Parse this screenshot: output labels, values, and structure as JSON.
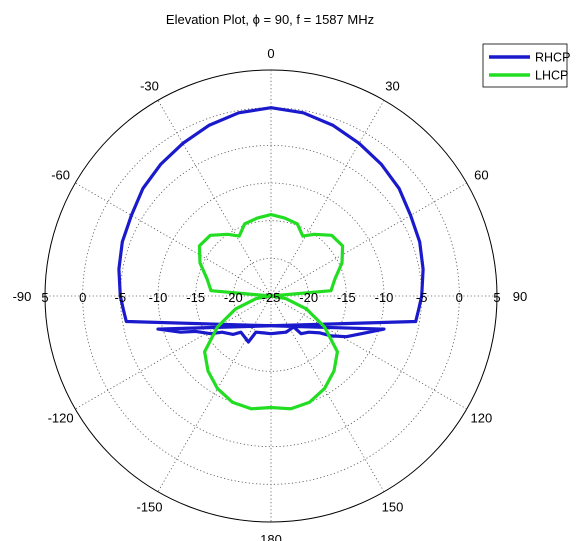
{
  "chart_data": {
    "type": "line",
    "polar": true,
    "title": "Elevation Plot, ϕ = 90, f = 1587 MHz",
    "title_parts": {
      "prefix": "Elevation Plot, ",
      "symbol": "ϕ",
      "suffix": " = 90, f = 1587 MHz"
    },
    "theta_direction": "clockwise",
    "theta_zero": "top",
    "angle_tick_labels": [
      {
        "theta": 0,
        "label": "0"
      },
      {
        "theta": 30,
        "label": "30"
      },
      {
        "theta": 60,
        "label": "60"
      },
      {
        "theta": 90,
        "label": "90"
      },
      {
        "theta": 120,
        "label": "120"
      },
      {
        "theta": 150,
        "label": "150"
      },
      {
        "theta": 180,
        "label": "180"
      },
      {
        "theta": -150,
        "label": "-150"
      },
      {
        "theta": -120,
        "label": "-120"
      },
      {
        "theta": -90,
        "label": "-90"
      },
      {
        "theta": -60,
        "label": "-60"
      },
      {
        "theta": -30,
        "label": "-30"
      }
    ],
    "radial_range": [
      -25,
      5
    ],
    "radial_ticks": [
      -25,
      -20,
      -15,
      -10,
      -5,
      0,
      5
    ],
    "radial_tick_labels": [
      {
        "value": 5,
        "side": "left",
        "label": "5"
      },
      {
        "value": 0,
        "side": "left",
        "label": "0"
      },
      {
        "value": -5,
        "side": "left",
        "label": "-5"
      },
      {
        "value": -10,
        "side": "left",
        "label": "-10"
      },
      {
        "value": -15,
        "side": "left",
        "label": "-15"
      },
      {
        "value": -20,
        "side": "left",
        "label": "-20"
      },
      {
        "value": -25,
        "side": "center",
        "label": "-25"
      },
      {
        "value": -20,
        "side": "right",
        "label": "-20"
      },
      {
        "value": -15,
        "side": "right",
        "label": "-15"
      },
      {
        "value": -10,
        "side": "right",
        "label": "-10"
      },
      {
        "value": -5,
        "side": "right",
        "label": "-5"
      },
      {
        "value": 0,
        "side": "right",
        "label": "0"
      },
      {
        "value": 5,
        "side": "right",
        "label": "5"
      }
    ],
    "grid": true,
    "legend": {
      "placement": "top-right"
    },
    "series": [
      {
        "name": "RHCP",
        "color": "#1a1acc",
        "theta": [
          -100,
          -95,
          -90,
          -80,
          -70,
          -60,
          -50,
          -40,
          -30,
          -20,
          -10,
          0,
          10,
          20,
          30,
          40,
          50,
          60,
          70,
          80,
          90,
          95,
          100
        ],
        "r": [
          -5.5,
          -5.3,
          -5.0,
          -4.5,
          -4.0,
          -3.6,
          -2.8,
          -2.2,
          -1.6,
          -0.9,
          -0.3,
          0,
          -0.3,
          -0.9,
          -1.6,
          -2.2,
          -2.8,
          -3.6,
          -4.0,
          -4.5,
          -5.0,
          -5.3,
          -5.5
        ],
        "lower_arc": {
          "x": [
            -15,
            -12,
            -10,
            -8,
            -6.5,
            -5,
            -4,
            -3,
            -2,
            -1,
            0,
            1,
            2,
            3,
            4,
            5,
            6.5,
            8,
            10,
            12,
            15
          ],
          "y": [
            -4.4,
            -4.8,
            -4.7,
            -5.0,
            -4.8,
            -5.1,
            -4.8,
            -6.1,
            -4.8,
            -4.9,
            -5.0,
            -4.9,
            -4.8,
            -4.1,
            -5.0,
            -4.8,
            -4.9,
            -5.3,
            -5.4,
            -5.0,
            -4.4
          ]
        }
      },
      {
        "name": "LHCP",
        "color": "#22dd22",
        "theta": [
          0,
          10,
          20,
          28,
          35,
          45,
          55,
          65,
          75,
          85,
          90,
          100,
          110,
          120,
          130,
          140,
          150,
          160,
          170,
          180,
          -170,
          -160,
          -150,
          -140,
          -130,
          -120,
          -110,
          -100,
          -90,
          -85,
          -75,
          -65,
          -55,
          -45,
          -35,
          -28,
          -20,
          -10,
          0
        ],
        "r": [
          -14.2,
          -14.5,
          -14.8,
          -16.0,
          -15.0,
          -13.6,
          -13.4,
          -14.6,
          -16.2,
          -17.0,
          -25,
          -23.0,
          -20.0,
          -16.8,
          -13.5,
          -12.0,
          -10.8,
          -10.0,
          -9.8,
          -10.2,
          -9.8,
          -10.0,
          -10.8,
          -12.0,
          -13.5,
          -16.8,
          -20.0,
          -23.0,
          -25,
          -17.0,
          -16.2,
          -14.6,
          -13.4,
          -13.6,
          -15.0,
          -16.0,
          -14.8,
          -14.5,
          -14.2
        ]
      }
    ]
  }
}
